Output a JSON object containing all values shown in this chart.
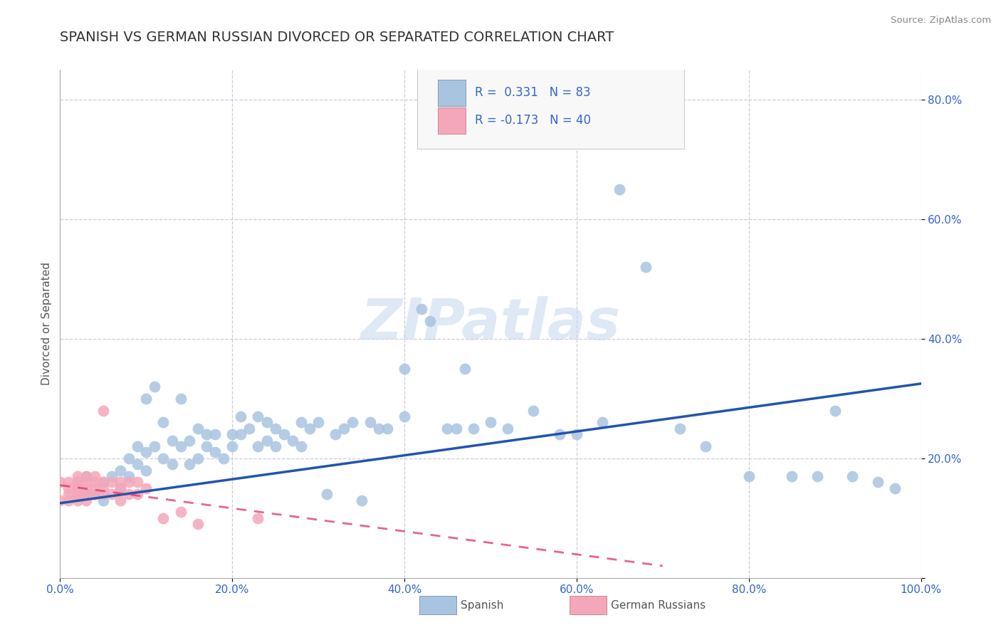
{
  "title": "SPANISH VS GERMAN RUSSIAN DIVORCED OR SEPARATED CORRELATION CHART",
  "source": "Source: ZipAtlas.com",
  "ylabel": "Divorced or Separated",
  "xlim": [
    0,
    1.0
  ],
  "ylim": [
    0,
    0.85
  ],
  "x_ticks": [
    0,
    0.2,
    0.4,
    0.6,
    0.8,
    1.0
  ],
  "x_tick_labels": [
    "0.0%",
    "20.0%",
    "40.0%",
    "60.0%",
    "80.0%",
    "100.0%"
  ],
  "y_ticks": [
    0.0,
    0.2,
    0.4,
    0.6,
    0.8
  ],
  "y_tick_labels": [
    "",
    "20.0%",
    "40.0%",
    "60.0%",
    "80.0%"
  ],
  "legend1_label": "R =  0.331   N = 83",
  "legend2_label": "R = -0.173   N = 40",
  "legend_bottom_label1": "Spanish",
  "legend_bottom_label2": "German Russians",
  "blue_color": "#a8c4e0",
  "pink_color": "#f4a7b9",
  "blue_line_color": "#2255aa",
  "pink_line_color": "#dd3366",
  "grid_color": "#ccccdd",
  "watermark": "ZIPatlas",
  "title_fontsize": 14,
  "axis_label_fontsize": 11,
  "tick_fontsize": 11,
  "blue_R": 0.331,
  "pink_R": -0.173,
  "blue_line_x0": 0.0,
  "blue_line_x1": 1.0,
  "blue_line_y0": 0.125,
  "blue_line_y1": 0.325,
  "pink_line_x0": 0.0,
  "pink_line_x1": 0.7,
  "pink_line_y0": 0.155,
  "pink_line_y1": 0.02,
  "blue_scatter_x": [
    0.02,
    0.03,
    0.03,
    0.04,
    0.05,
    0.05,
    0.06,
    0.07,
    0.07,
    0.08,
    0.08,
    0.09,
    0.09,
    0.1,
    0.1,
    0.1,
    0.11,
    0.11,
    0.12,
    0.12,
    0.13,
    0.13,
    0.14,
    0.14,
    0.15,
    0.15,
    0.16,
    0.16,
    0.17,
    0.17,
    0.18,
    0.18,
    0.19,
    0.2,
    0.2,
    0.21,
    0.21,
    0.22,
    0.23,
    0.23,
    0.24,
    0.24,
    0.25,
    0.25,
    0.26,
    0.27,
    0.28,
    0.28,
    0.29,
    0.3,
    0.31,
    0.32,
    0.33,
    0.34,
    0.35,
    0.36,
    0.37,
    0.38,
    0.4,
    0.4,
    0.42,
    0.43,
    0.45,
    0.46,
    0.47,
    0.48,
    0.5,
    0.52,
    0.55,
    0.58,
    0.6,
    0.63,
    0.65,
    0.68,
    0.72,
    0.75,
    0.8,
    0.85,
    0.88,
    0.9,
    0.92,
    0.95,
    0.97
  ],
  "blue_scatter_y": [
    0.15,
    0.14,
    0.17,
    0.14,
    0.13,
    0.16,
    0.17,
    0.15,
    0.18,
    0.17,
    0.2,
    0.19,
    0.22,
    0.18,
    0.21,
    0.3,
    0.22,
    0.32,
    0.2,
    0.26,
    0.19,
    0.23,
    0.22,
    0.3,
    0.19,
    0.23,
    0.2,
    0.25,
    0.22,
    0.24,
    0.21,
    0.24,
    0.2,
    0.22,
    0.24,
    0.24,
    0.27,
    0.25,
    0.22,
    0.27,
    0.23,
    0.26,
    0.22,
    0.25,
    0.24,
    0.23,
    0.22,
    0.26,
    0.25,
    0.26,
    0.14,
    0.24,
    0.25,
    0.26,
    0.13,
    0.26,
    0.25,
    0.25,
    0.27,
    0.35,
    0.45,
    0.43,
    0.25,
    0.25,
    0.35,
    0.25,
    0.26,
    0.25,
    0.28,
    0.24,
    0.24,
    0.26,
    0.65,
    0.52,
    0.25,
    0.22,
    0.17,
    0.17,
    0.17,
    0.28,
    0.17,
    0.16,
    0.15
  ],
  "pink_scatter_x": [
    0.0,
    0.0,
    0.01,
    0.01,
    0.01,
    0.01,
    0.02,
    0.02,
    0.02,
    0.02,
    0.02,
    0.02,
    0.02,
    0.03,
    0.03,
    0.03,
    0.03,
    0.03,
    0.04,
    0.04,
    0.04,
    0.04,
    0.05,
    0.05,
    0.05,
    0.05,
    0.06,
    0.06,
    0.07,
    0.07,
    0.07,
    0.08,
    0.08,
    0.09,
    0.09,
    0.1,
    0.12,
    0.14,
    0.16,
    0.23
  ],
  "pink_scatter_y": [
    0.13,
    0.16,
    0.13,
    0.14,
    0.15,
    0.16,
    0.13,
    0.14,
    0.15,
    0.16,
    0.17,
    0.14,
    0.16,
    0.13,
    0.14,
    0.15,
    0.16,
    0.17,
    0.14,
    0.15,
    0.16,
    0.17,
    0.14,
    0.15,
    0.16,
    0.28,
    0.14,
    0.16,
    0.13,
    0.15,
    0.16,
    0.14,
    0.16,
    0.14,
    0.16,
    0.15,
    0.1,
    0.11,
    0.09,
    0.1
  ]
}
